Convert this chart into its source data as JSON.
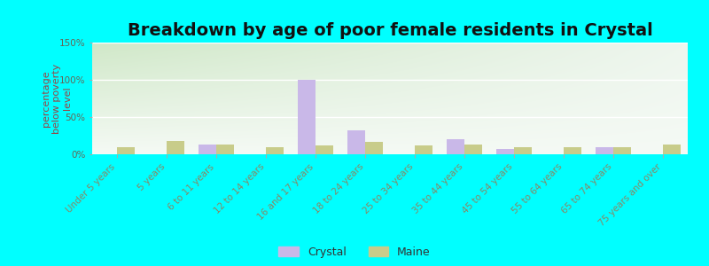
{
  "title": "Breakdown by age of poor female residents in Crystal",
  "categories": [
    "Under 5 years",
    "5 years",
    "6 to 11 years",
    "12 to 14 years",
    "16 and 17 years",
    "18 to 24 years",
    "25 to 34 years",
    "35 to 44 years",
    "45 to 54 years",
    "55 to 64 years",
    "65 to 74 years",
    "75 years and over"
  ],
  "crystal_values": [
    0,
    0,
    13,
    0,
    100,
    32,
    0,
    20,
    7,
    0,
    9,
    0
  ],
  "maine_values": [
    10,
    18,
    13,
    9,
    12,
    17,
    12,
    13,
    9,
    10,
    9,
    13
  ],
  "crystal_color": "#c9b8e8",
  "maine_color": "#c8cc8a",
  "ylabel": "percentage\nbelow poverty\nlevel",
  "ylim": [
    0,
    150
  ],
  "yticks": [
    0,
    50,
    100,
    150
  ],
  "ytick_labels": [
    "0%",
    "50%",
    "100%",
    "150%"
  ],
  "bg_color_top_left": "#d8ecd0",
  "bg_color_top_right": "#f0f8f0",
  "bg_color_bottom": "#f5faf0",
  "outer_bg": "#00ffff",
  "bar_width": 0.35,
  "title_fontsize": 14,
  "axis_label_fontsize": 8,
  "tick_fontsize": 7.5,
  "legend_labels": [
    "Crystal",
    "Maine"
  ],
  "ylabel_color": "#994444",
  "tick_color": "#888866",
  "ytick_color": "#666655"
}
